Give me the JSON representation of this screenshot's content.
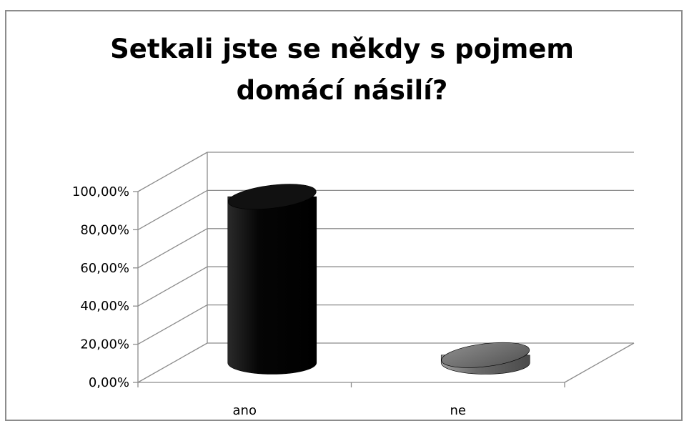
{
  "chart_data": {
    "type": "bar",
    "title_lines": [
      "Setkali jste se někdy s pojmem",
      "domácí násilí?"
    ],
    "categories": [
      "ano",
      "ne"
    ],
    "series": [
      {
        "values": [
          87.0,
          4.0
        ]
      }
    ],
    "bar_colors": [
      "#0a0a0a",
      "#777777"
    ],
    "ylim": [
      0,
      100
    ],
    "yticks": [
      0,
      20,
      40,
      60,
      80,
      100
    ],
    "ytick_labels": [
      "0,00%",
      "20,00%",
      "40,00%",
      "60,00%",
      "80,00%",
      "100,00%"
    ],
    "grid": true,
    "legend": "none",
    "style": "3d-cylinder"
  }
}
